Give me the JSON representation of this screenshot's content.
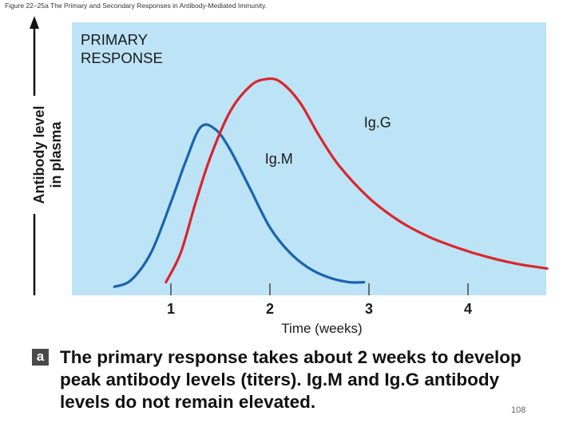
{
  "figure_caption": "Figure 22–25a The Primary and Secondary Responses in Antibody-Mediated Immunity.",
  "chart_data": {
    "type": "line",
    "title": "PRIMARY RESPONSE",
    "title_lines": [
      "PRIMARY",
      "RESPONSE"
    ],
    "xlabel": "Time (weeks)",
    "ylabel": "Antibody level in plasma",
    "ylabel_lines": [
      "Antibody level",
      "in plasma"
    ],
    "xlim": [
      0,
      4.8
    ],
    "ylim": [
      0,
      1
    ],
    "x_ticks": [
      1,
      2,
      3,
      4
    ],
    "x_tick_labels": [
      "1",
      "2",
      "3",
      "4"
    ],
    "background_color": "#bde3f7",
    "series": [
      {
        "name": "Ig.M",
        "color": "#1a63ad",
        "x": [
          0.43,
          0.6,
          0.8,
          1.0,
          1.15,
          1.3,
          1.45,
          1.6,
          1.8,
          2.0,
          2.2,
          2.4,
          2.6,
          2.8,
          2.95
        ],
        "y": [
          0.02,
          0.05,
          0.17,
          0.39,
          0.57,
          0.72,
          0.71,
          0.62,
          0.45,
          0.28,
          0.17,
          0.1,
          0.06,
          0.04,
          0.04
        ]
      },
      {
        "name": "Ig.G",
        "color": "#d9262c",
        "x": [
          0.95,
          1.1,
          1.25,
          1.4,
          1.6,
          1.8,
          1.95,
          2.1,
          2.3,
          2.5,
          2.7,
          3.0,
          3.3,
          3.6,
          3.9,
          4.2,
          4.5,
          4.8
        ],
        "y": [
          0.04,
          0.17,
          0.39,
          0.59,
          0.79,
          0.9,
          0.93,
          0.92,
          0.83,
          0.68,
          0.55,
          0.41,
          0.31,
          0.24,
          0.19,
          0.15,
          0.12,
          0.1
        ]
      }
    ],
    "annotations": [
      {
        "text": "Ig.G",
        "x": 2.95,
        "y": 0.72
      },
      {
        "text": "Ig.M",
        "x": 1.95,
        "y": 0.56
      }
    ]
  },
  "caption": {
    "badge": "a",
    "text": "The primary response takes about 2 weeks to develop peak antibody levels (titers). Ig.M and Ig.G antibody levels do not remain elevated."
  },
  "page_number": "108"
}
